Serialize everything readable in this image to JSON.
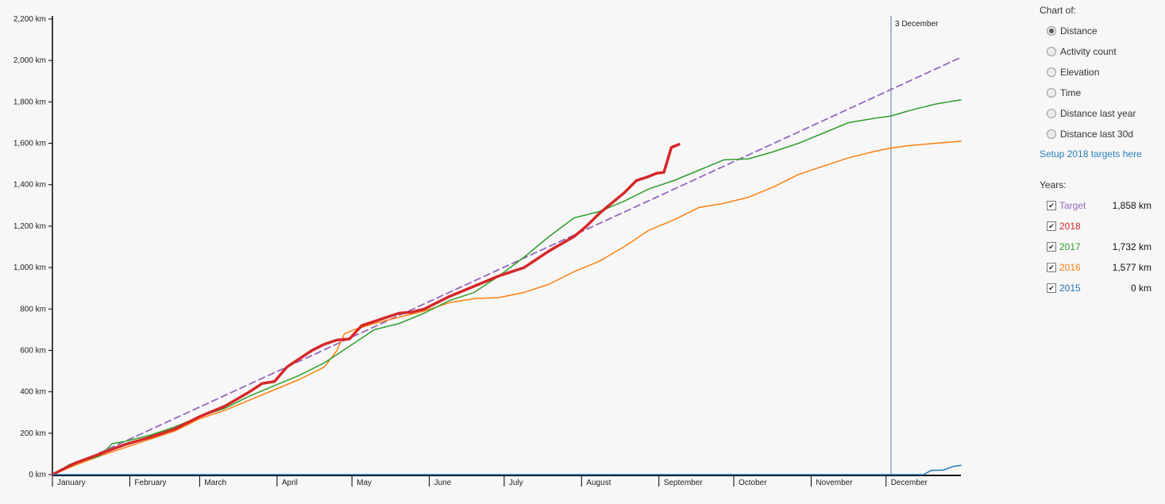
{
  "chart_data": {
    "type": "line",
    "x_unit": "day of year",
    "y_unit": "km",
    "ylim": [
      0,
      2200
    ],
    "xlim": [
      1,
      365
    ],
    "yticks": [
      {
        "value": 0,
        "label": "0 km"
      },
      {
        "value": 200,
        "label": "200 km"
      },
      {
        "value": 400,
        "label": "400 km"
      },
      {
        "value": 600,
        "label": "600 km"
      },
      {
        "value": 800,
        "label": "800 km"
      },
      {
        "value": 1000,
        "label": "1,000 km"
      },
      {
        "value": 1200,
        "label": "1,200 km"
      },
      {
        "value": 1400,
        "label": "1,400 km"
      },
      {
        "value": 1600,
        "label": "1,600 km"
      },
      {
        "value": 1800,
        "label": "1,800 km"
      },
      {
        "value": 2000,
        "label": "2,000 km"
      },
      {
        "value": 2200,
        "label": "2,200 km"
      }
    ],
    "months": [
      {
        "label": "January",
        "day": 1
      },
      {
        "label": "February",
        "day": 32
      },
      {
        "label": "March",
        "day": 60
      },
      {
        "label": "April",
        "day": 91
      },
      {
        "label": "May",
        "day": 121
      },
      {
        "label": "June",
        "day": 152
      },
      {
        "label": "July",
        "day": 182
      },
      {
        "label": "August",
        "day": 213
      },
      {
        "label": "September",
        "day": 244
      },
      {
        "label": "October",
        "day": 274
      },
      {
        "label": "November",
        "day": 305
      },
      {
        "label": "December",
        "day": 335
      }
    ],
    "marker": {
      "label": "3 December",
      "day": 337
    },
    "series": [
      {
        "name": "Target",
        "color": "#9467bd",
        "dashed": true,
        "width": 1.8,
        "x": [
          1,
          365
        ],
        "y": [
          0,
          2015
        ]
      },
      {
        "name": "2016",
        "color": "#ff7f0e",
        "dashed": false,
        "width": 1.5,
        "x": [
          1,
          10,
          20,
          30,
          40,
          50,
          60,
          70,
          80,
          90,
          100,
          110,
          115,
          118,
          122,
          130,
          140,
          150,
          160,
          170,
          180,
          190,
          200,
          210,
          220,
          230,
          240,
          250,
          260,
          270,
          280,
          290,
          300,
          310,
          320,
          330,
          337,
          345,
          355,
          365
        ],
        "y": [
          0,
          45,
          90,
          130,
          170,
          210,
          270,
          310,
          360,
          410,
          460,
          520,
          600,
          680,
          700,
          730,
          760,
          790,
          830,
          850,
          855,
          880,
          920,
          980,
          1030,
          1100,
          1180,
          1230,
          1290,
          1310,
          1340,
          1390,
          1450,
          1490,
          1530,
          1560,
          1577,
          1590,
          1600,
          1610
        ]
      },
      {
        "name": "2017",
        "color": "#2ca02c",
        "dashed": false,
        "width": 1.5,
        "x": [
          1,
          8,
          20,
          25,
          30,
          40,
          50,
          60,
          70,
          80,
          90,
          100,
          110,
          120,
          130,
          140,
          150,
          160,
          170,
          180,
          190,
          200,
          210,
          220,
          230,
          240,
          250,
          260,
          270,
          280,
          290,
          300,
          310,
          320,
          330,
          337,
          345,
          355,
          365
        ],
        "y": [
          0,
          50,
          90,
          150,
          160,
          190,
          230,
          280,
          320,
          380,
          430,
          480,
          540,
          620,
          700,
          730,
          780,
          840,
          880,
          960,
          1050,
          1150,
          1240,
          1270,
          1320,
          1380,
          1420,
          1470,
          1520,
          1525,
          1560,
          1600,
          1650,
          1700,
          1720,
          1732,
          1760,
          1790,
          1810
        ]
      },
      {
        "name": "2018",
        "color": "#d62728",
        "dashed": false,
        "width": 3.5,
        "x": [
          1,
          10,
          20,
          30,
          40,
          50,
          60,
          70,
          80,
          85,
          90,
          95,
          100,
          105,
          110,
          115,
          120,
          125,
          130,
          135,
          140,
          145,
          150,
          160,
          170,
          180,
          190,
          200,
          210,
          215,
          220,
          225,
          230,
          235,
          240,
          243,
          246,
          249,
          252
        ],
        "y": [
          0,
          55,
          100,
          145,
          180,
          220,
          280,
          330,
          400,
          440,
          450,
          520,
          560,
          600,
          630,
          650,
          655,
          720,
          740,
          760,
          780,
          785,
          800,
          860,
          910,
          960,
          1000,
          1080,
          1150,
          1200,
          1260,
          1310,
          1360,
          1420,
          1440,
          1455,
          1460,
          1580,
          1595
        ]
      },
      {
        "name": "2015",
        "color": "#1f77b4",
        "dashed": false,
        "width": 1.5,
        "x": [
          1,
          350,
          353,
          358,
          362,
          365
        ],
        "y": [
          0,
          0,
          20,
          22,
          40,
          45
        ]
      }
    ]
  },
  "panel": {
    "chart_of_heading": "Chart of:",
    "options": [
      {
        "label": "Distance",
        "checked": true
      },
      {
        "label": "Activity count",
        "checked": false
      },
      {
        "label": "Elevation",
        "checked": false
      },
      {
        "label": "Time",
        "checked": false
      },
      {
        "label": "Distance last year",
        "checked": false
      },
      {
        "label": "Distance last 30d",
        "checked": false
      }
    ],
    "setup_link": "Setup 2018 targets here",
    "years_heading": "Years:",
    "years": [
      {
        "label": "Target",
        "value": "1,858 km",
        "color": "#9467bd",
        "checked": true
      },
      {
        "label": "2018",
        "value": "",
        "color": "#d62728",
        "checked": true
      },
      {
        "label": "2017",
        "value": "1,732 km",
        "color": "#2ca02c",
        "checked": true
      },
      {
        "label": "2016",
        "value": "1,577 km",
        "color": "#ff7f0e",
        "checked": true
      },
      {
        "label": "2015",
        "value": "0 km",
        "color": "#1f77b4",
        "checked": true
      }
    ]
  }
}
